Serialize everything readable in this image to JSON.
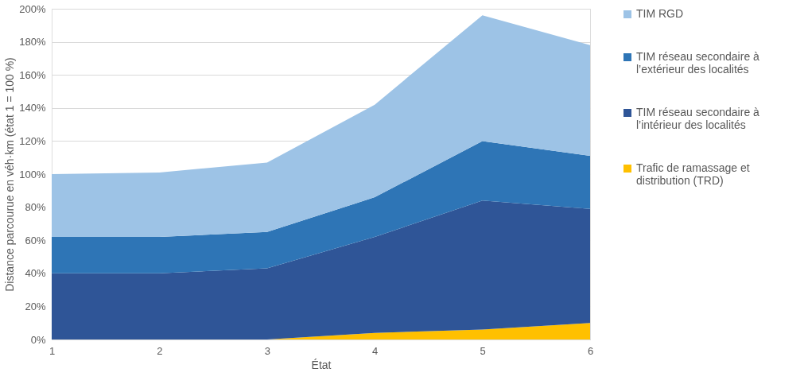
{
  "chart_data": {
    "type": "area",
    "stacked": true,
    "xlabel": "État",
    "ylabel": "Distance parcourue en véh·km (état 1 = 100 %)",
    "x": [
      1,
      2,
      3,
      4,
      5,
      6
    ],
    "series": [
      {
        "name": "Trafic de ramassage et distribution (TRD)",
        "color": "#ffc000",
        "values": [
          0,
          0,
          0,
          4,
          6,
          10
        ]
      },
      {
        "name": "TIM réseau secondaire à l’intérieur des localités",
        "color": "#2f5597",
        "values": [
          40,
          40,
          43,
          58,
          78,
          69
        ]
      },
      {
        "name": "TIM réseau secondaire à l’extérieur des localités",
        "color": "#2e75b6",
        "values": [
          22,
          22,
          22,
          24,
          36,
          32
        ]
      },
      {
        "name": "TIM RGD",
        "color": "#9dc3e6",
        "values": [
          38,
          39,
          42,
          56,
          76,
          67
        ]
      }
    ],
    "xlim": [
      1,
      6
    ],
    "xticks": [
      1,
      2,
      3,
      4,
      5,
      6
    ],
    "ylim": [
      0,
      200
    ],
    "yticks": [
      {
        "value": 0,
        "label": "0%"
      },
      {
        "value": 20,
        "label": "20%"
      },
      {
        "value": 40,
        "label": "40%"
      },
      {
        "value": 60,
        "label": "60%"
      },
      {
        "value": 80,
        "label": "80%"
      },
      {
        "value": 100,
        "label": "100%"
      },
      {
        "value": 120,
        "label": "120%"
      },
      {
        "value": 140,
        "label": "140%"
      },
      {
        "value": 160,
        "label": "160%"
      },
      {
        "value": 180,
        "label": "180%"
      },
      {
        "value": 200,
        "label": "200%"
      }
    ],
    "grid": "y",
    "legend": "right"
  }
}
